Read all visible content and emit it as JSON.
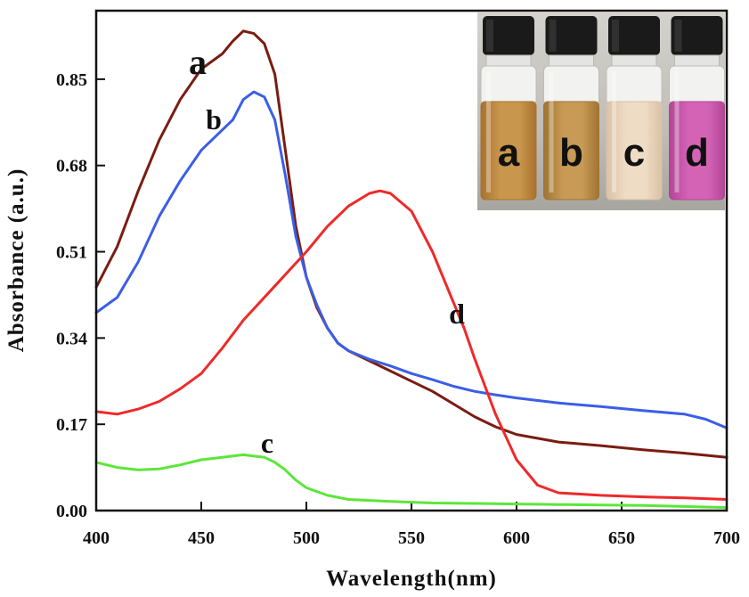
{
  "chart_data": {
    "type": "line",
    "xlabel": "Wavelength(nm)",
    "ylabel": "Absorbance (a.u.)",
    "xlim": [
      400,
      700
    ],
    "ylim": [
      0,
      0.985
    ],
    "x_ticks": [
      400,
      450,
      500,
      550,
      600,
      650,
      700
    ],
    "x_tick_labels": [
      "400",
      "450",
      "500",
      "550",
      "600",
      "650",
      "700"
    ],
    "y_ticks": [
      0.0,
      0.17,
      0.34,
      0.51,
      0.68,
      0.85
    ],
    "y_tick_labels": [
      "0.00",
      "0.17",
      "0.34",
      "0.51",
      "0.68",
      "0.85"
    ],
    "grid": false,
    "series": [
      {
        "name": "a",
        "color": "#7a1c12",
        "points": [
          [
            400,
            0.44
          ],
          [
            410,
            0.52
          ],
          [
            420,
            0.63
          ],
          [
            430,
            0.73
          ],
          [
            440,
            0.81
          ],
          [
            450,
            0.87
          ],
          [
            460,
            0.9
          ],
          [
            465,
            0.925
          ],
          [
            470,
            0.945
          ],
          [
            475,
            0.94
          ],
          [
            480,
            0.92
          ],
          [
            485,
            0.86
          ],
          [
            490,
            0.71
          ],
          [
            495,
            0.56
          ],
          [
            500,
            0.46
          ],
          [
            505,
            0.4
          ],
          [
            510,
            0.36
          ],
          [
            515,
            0.33
          ],
          [
            520,
            0.315
          ],
          [
            530,
            0.295
          ],
          [
            540,
            0.275
          ],
          [
            550,
            0.255
          ],
          [
            560,
            0.235
          ],
          [
            570,
            0.21
          ],
          [
            580,
            0.185
          ],
          [
            590,
            0.165
          ],
          [
            600,
            0.15
          ],
          [
            620,
            0.135
          ],
          [
            640,
            0.128
          ],
          [
            660,
            0.12
          ],
          [
            680,
            0.113
          ],
          [
            700,
            0.105
          ]
        ]
      },
      {
        "name": "b",
        "color": "#3b5ee6",
        "points": [
          [
            400,
            0.39
          ],
          [
            410,
            0.42
          ],
          [
            420,
            0.49
          ],
          [
            430,
            0.58
          ],
          [
            440,
            0.65
          ],
          [
            450,
            0.71
          ],
          [
            460,
            0.75
          ],
          [
            465,
            0.77
          ],
          [
            470,
            0.81
          ],
          [
            475,
            0.825
          ],
          [
            480,
            0.815
          ],
          [
            485,
            0.77
          ],
          [
            490,
            0.66
          ],
          [
            495,
            0.54
          ],
          [
            500,
            0.46
          ],
          [
            505,
            0.405
          ],
          [
            510,
            0.36
          ],
          [
            515,
            0.33
          ],
          [
            520,
            0.315
          ],
          [
            530,
            0.298
          ],
          [
            540,
            0.285
          ],
          [
            550,
            0.27
          ],
          [
            560,
            0.258
          ],
          [
            570,
            0.245
          ],
          [
            580,
            0.235
          ],
          [
            590,
            0.228
          ],
          [
            600,
            0.222
          ],
          [
            620,
            0.212
          ],
          [
            640,
            0.205
          ],
          [
            660,
            0.197
          ],
          [
            680,
            0.19
          ],
          [
            690,
            0.18
          ],
          [
            700,
            0.163
          ]
        ]
      },
      {
        "name": "c",
        "color": "#5ce63a",
        "points": [
          [
            400,
            0.095
          ],
          [
            410,
            0.085
          ],
          [
            420,
            0.08
          ],
          [
            430,
            0.082
          ],
          [
            440,
            0.09
          ],
          [
            450,
            0.1
          ],
          [
            460,
            0.105
          ],
          [
            470,
            0.11
          ],
          [
            480,
            0.105
          ],
          [
            485,
            0.095
          ],
          [
            490,
            0.08
          ],
          [
            495,
            0.06
          ],
          [
            500,
            0.045
          ],
          [
            510,
            0.03
          ],
          [
            520,
            0.022
          ],
          [
            540,
            0.018
          ],
          [
            560,
            0.015
          ],
          [
            580,
            0.014
          ],
          [
            600,
            0.013
          ],
          [
            620,
            0.012
          ],
          [
            640,
            0.011
          ],
          [
            660,
            0.01
          ],
          [
            680,
            0.008
          ],
          [
            700,
            0.006
          ]
        ]
      },
      {
        "name": "d",
        "color": "#ee2a2a",
        "points": [
          [
            400,
            0.195
          ],
          [
            410,
            0.19
          ],
          [
            420,
            0.2
          ],
          [
            430,
            0.215
          ],
          [
            440,
            0.24
          ],
          [
            450,
            0.27
          ],
          [
            460,
            0.32
          ],
          [
            470,
            0.375
          ],
          [
            480,
            0.42
          ],
          [
            490,
            0.465
          ],
          [
            500,
            0.51
          ],
          [
            510,
            0.56
          ],
          [
            520,
            0.6
          ],
          [
            530,
            0.625
          ],
          [
            535,
            0.63
          ],
          [
            540,
            0.625
          ],
          [
            550,
            0.59
          ],
          [
            560,
            0.51
          ],
          [
            570,
            0.41
          ],
          [
            575,
            0.36
          ],
          [
            580,
            0.3
          ],
          [
            590,
            0.19
          ],
          [
            600,
            0.1
          ],
          [
            610,
            0.05
          ],
          [
            620,
            0.035
          ],
          [
            640,
            0.03
          ],
          [
            660,
            0.027
          ],
          [
            680,
            0.025
          ],
          [
            700,
            0.022
          ]
        ]
      }
    ],
    "annotations": [
      {
        "text": "a",
        "size": "large"
      },
      {
        "text": "b",
        "size": "medium"
      },
      {
        "text": "c",
        "size": "medium"
      },
      {
        "text": "d",
        "size": "medium"
      }
    ]
  },
  "inset_photo": {
    "vials": [
      {
        "label": "a",
        "liquid": "#c9964e",
        "liquid_dark": "#a8722e"
      },
      {
        "label": "b",
        "liquid": "#c89a55",
        "liquid_dark": "#9f7434"
      },
      {
        "label": "c",
        "liquid": "#efdcc4",
        "liquid_dark": "#d9c2a6"
      },
      {
        "label": "d",
        "liquid": "#d463b6",
        "liquid_dark": "#b34597"
      }
    ]
  }
}
